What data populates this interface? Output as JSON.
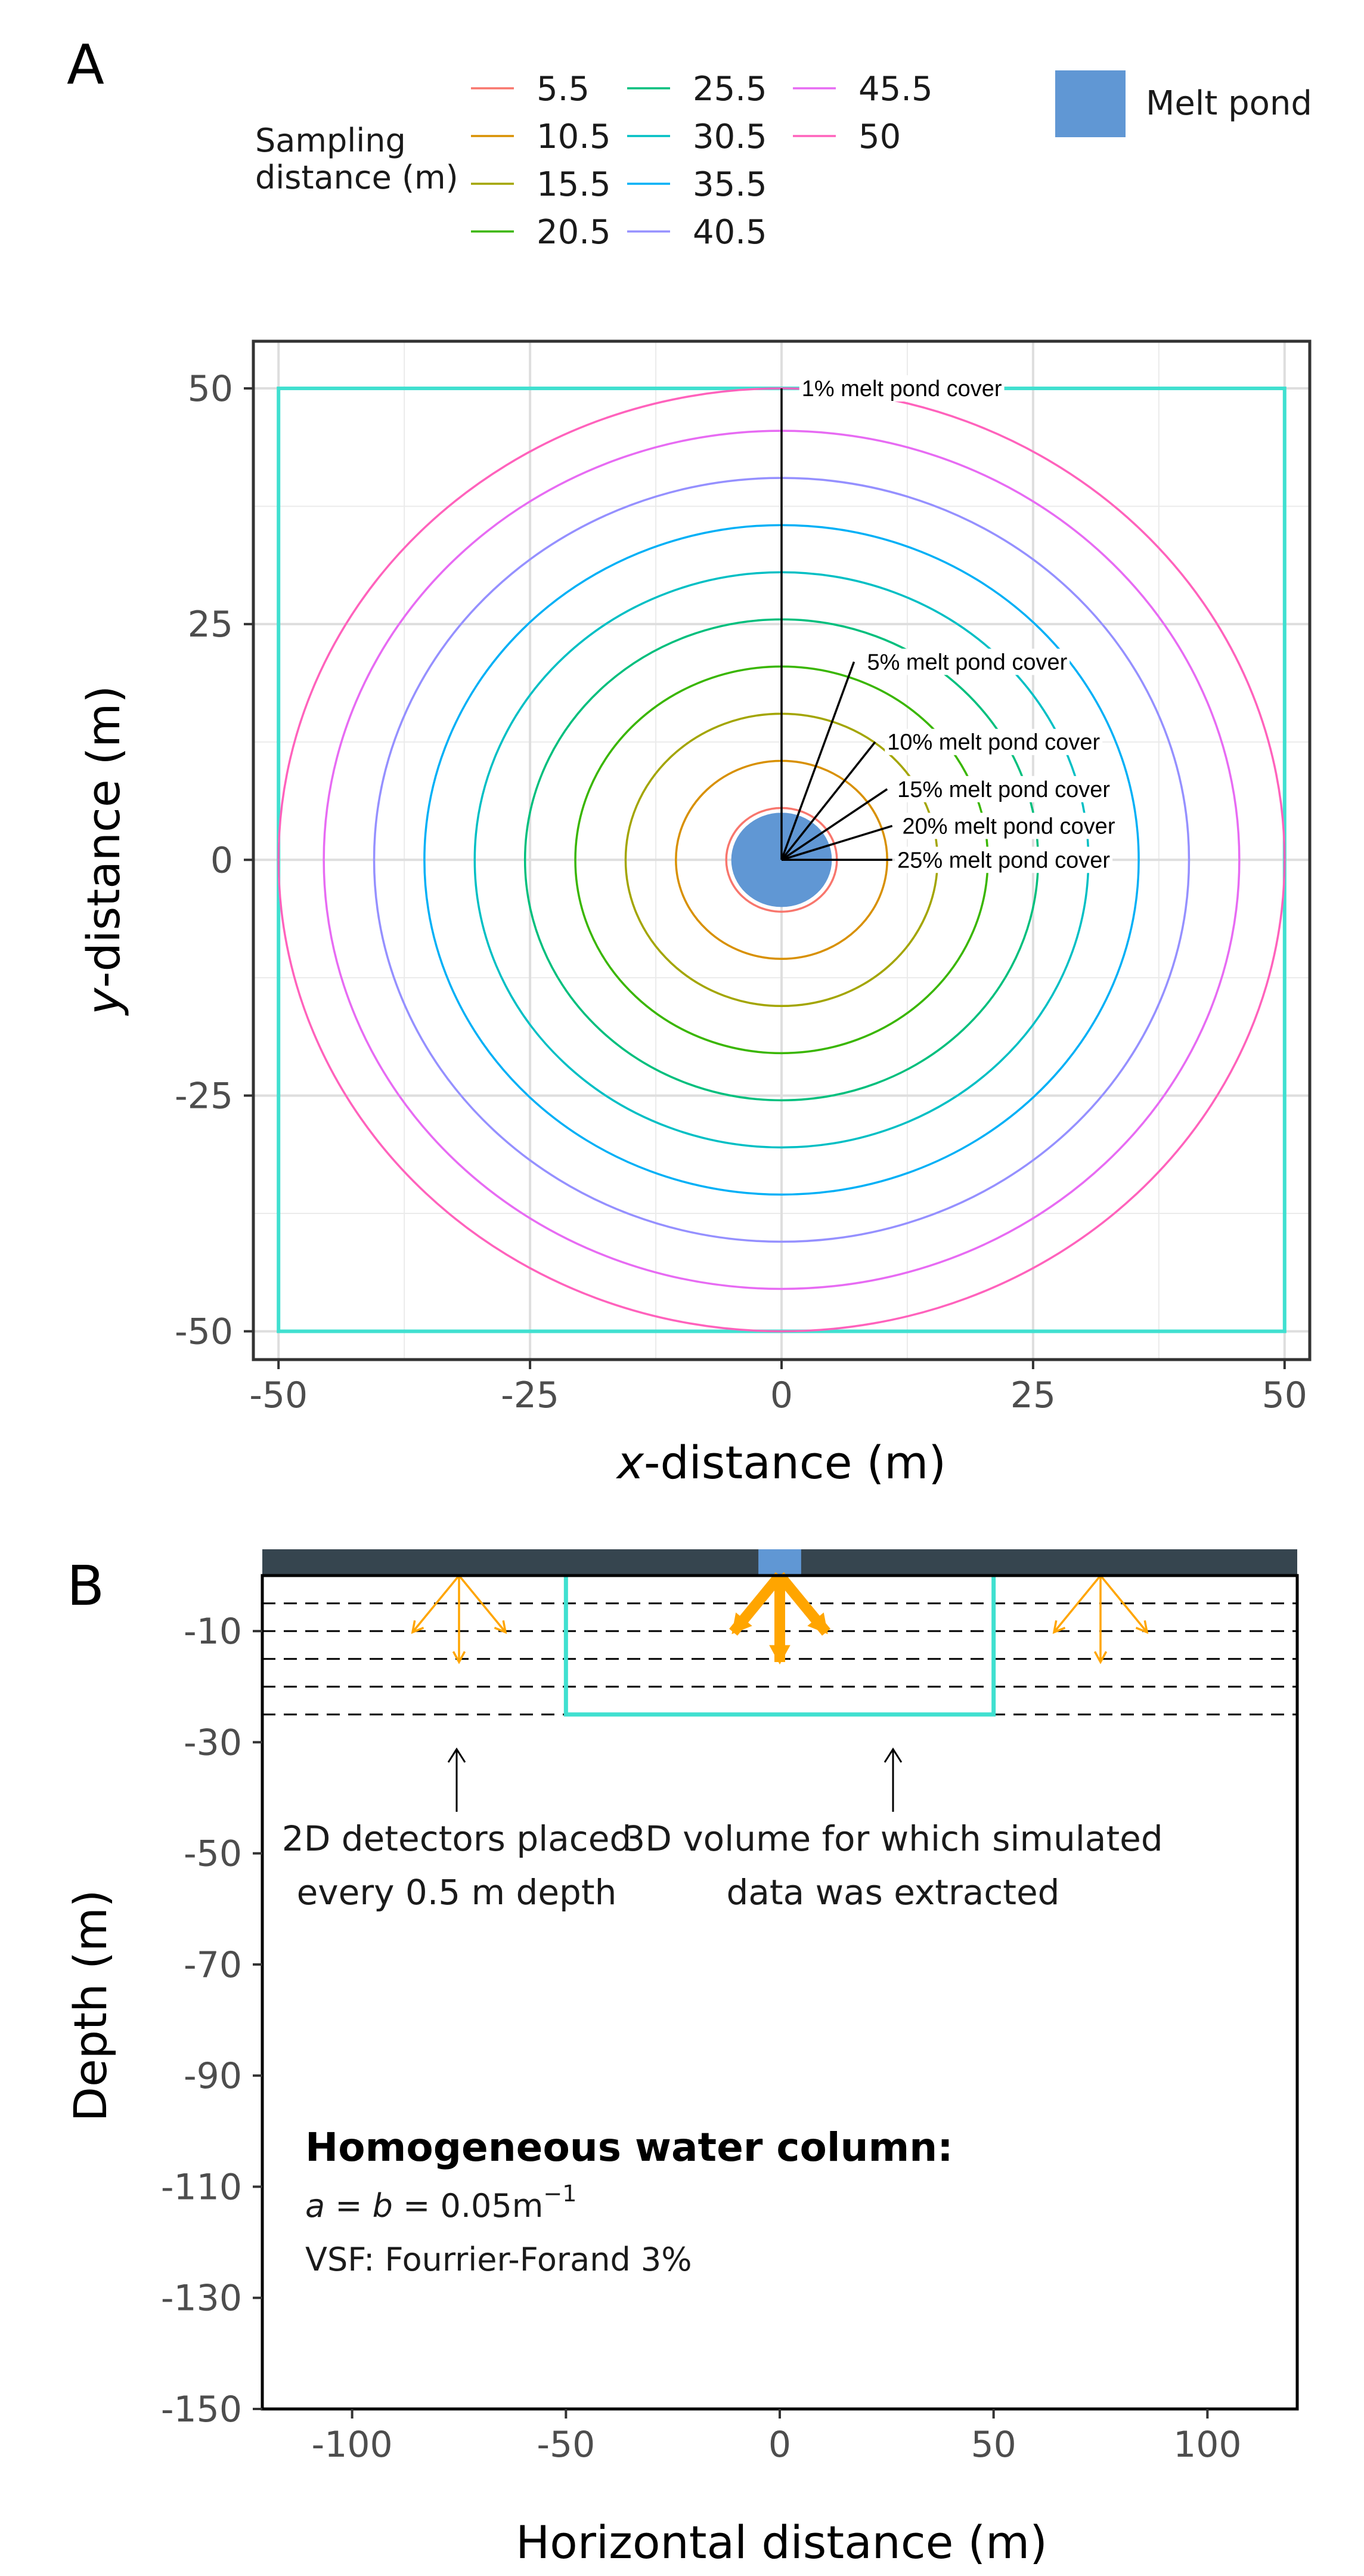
{
  "panel_a": {
    "label": "A",
    "legend": {
      "title_line1": "Sampling",
      "title_line2": "distance (m)",
      "items": [
        "5.5",
        "10.5",
        "15.5",
        "20.5",
        "25.5",
        "30.5",
        "35.5",
        "40.5",
        "45.5",
        "50"
      ],
      "melt_label": "Melt pond"
    },
    "xlabel_prefix": "x",
    "xlabel_rest": "-distance (m)",
    "ylabel_prefix": "y",
    "ylabel_rest": "-distance (m)"
  },
  "panel_b": {
    "label": "B",
    "xlabel": "Horizontal distance (m)",
    "ylabel": "Depth (m)",
    "annotation_2d_line1": "2D detectors placed",
    "annotation_2d_line2": "every 0.5 m depth",
    "annotation_3d_line1": "3D volume for which simulated",
    "annotation_3d_line2": "data was extracted",
    "note_title": "Homogeneous water column:",
    "note_ab_a": "a",
    "note_ab_eq1": " = ",
    "note_ab_b": "b",
    "note_ab_eq2": " = 0.05m",
    "note_ab_sup": "−1",
    "note_vsf": "VSF: Fourrier-Forand 3%"
  },
  "chart_data": [
    {
      "type": "scatter",
      "title": "",
      "xlabel": "x-distance (m)",
      "ylabel": "y-distance (m)",
      "xlim": [
        -52.5,
        52.5
      ],
      "ylim": [
        -53,
        55
      ],
      "xticks": [
        -50,
        -25,
        0,
        25,
        50
      ],
      "yticks": [
        -50,
        -25,
        0,
        25,
        50
      ],
      "grid": true,
      "legend_position": "top",
      "series": [
        {
          "name": "5.5",
          "radius": 5.5,
          "color": "#f8766d"
        },
        {
          "name": "10.5",
          "radius": 10.5,
          "color": "#d89000"
        },
        {
          "name": "15.5",
          "radius": 15.5,
          "color": "#a3a500"
        },
        {
          "name": "20.5",
          "radius": 20.5,
          "color": "#39b600"
        },
        {
          "name": "25.5",
          "radius": 25.5,
          "color": "#00bf7d"
        },
        {
          "name": "30.5",
          "radius": 30.5,
          "color": "#00bfc4"
        },
        {
          "name": "35.5",
          "radius": 35.5,
          "color": "#00b0f6"
        },
        {
          "name": "40.5",
          "radius": 40.5,
          "color": "#9590ff"
        },
        {
          "name": "45.5",
          "radius": 45.5,
          "color": "#e76bf3"
        },
        {
          "name": "50",
          "radius": 50,
          "color": "#ff62bc"
        }
      ],
      "melt_pond": {
        "name": "Melt pond",
        "radius": 5,
        "color": "#6097d4"
      },
      "square_color": "#40e0d0",
      "square_half_width": 50,
      "annotations": [
        {
          "label": "1% melt pond cover",
          "tip": [
            0,
            50
          ],
          "text_at": [
            2,
            50
          ]
        },
        {
          "label": "5% melt pond cover",
          "tip": [
            7.2,
            21
          ],
          "text_at": [
            8.5,
            21
          ]
        },
        {
          "label": "10% melt pond cover",
          "tip": [
            9.3,
            12.5
          ],
          "text_at": [
            10.5,
            12.5
          ]
        },
        {
          "label": "15% melt pond cover",
          "tip": [
            10.5,
            7.5
          ],
          "text_at": [
            11.5,
            7.5
          ]
        },
        {
          "label": "20% melt pond cover",
          "tip": [
            11,
            3.6
          ],
          "text_at": [
            12,
            3.6
          ]
        },
        {
          "label": "25% melt pond cover",
          "tip": [
            11,
            0
          ],
          "text_at": [
            11.5,
            0
          ]
        }
      ]
    },
    {
      "type": "line",
      "title": "",
      "xlabel": "Horizontal distance (m)",
      "ylabel": "Depth (m)",
      "xlim": [
        -121,
        121
      ],
      "ylim": [
        -150,
        0
      ],
      "xticks": [
        -100,
        -50,
        0,
        50,
        100
      ],
      "yticks": [
        -10,
        -30,
        -50,
        -70,
        -90,
        -110,
        -130,
        -150
      ],
      "grid": false,
      "detector_depths": [
        -5,
        -10,
        -15,
        -20,
        -25
      ],
      "volume_box": {
        "x": [
          -50,
          50
        ],
        "depth": [
          0,
          -25
        ],
        "color": "#40e0d0"
      },
      "surface_color": "#36454f",
      "melt_pond": {
        "x": [
          -5,
          5
        ],
        "color": "#6097d4"
      },
      "arrow_color": "#ffa500",
      "arrow_origins_x": [
        -75,
        0,
        75
      ]
    }
  ]
}
